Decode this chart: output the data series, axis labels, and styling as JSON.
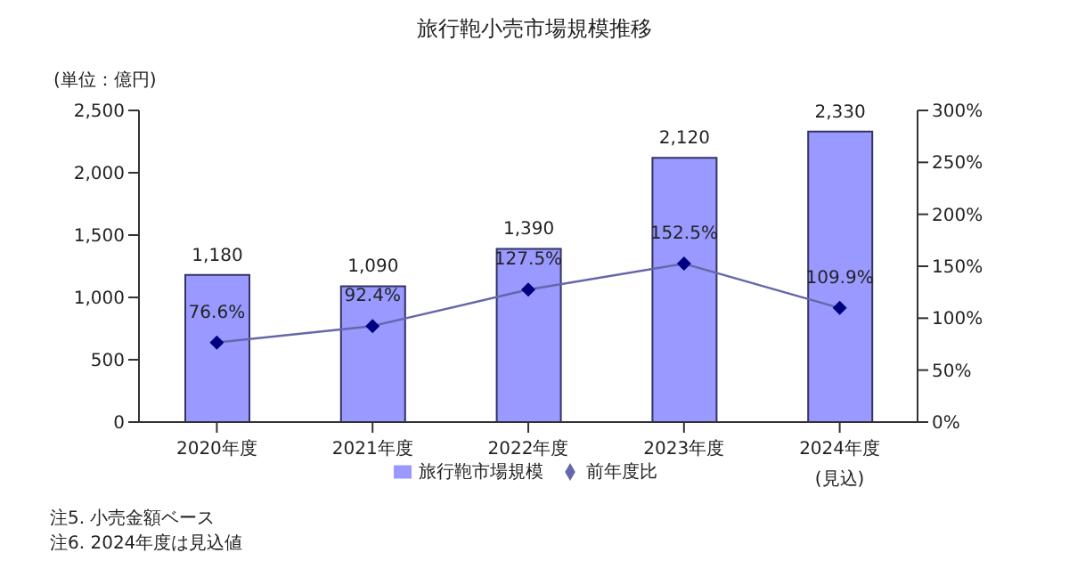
{
  "chart_data": {
    "type": "bar",
    "title": "旅行鞄小売市場規模推移",
    "ylabel": "(単位：億円)",
    "categories": [
      "2020年度",
      "2021年度",
      "2022年度",
      "2023年度",
      "2024年度\n(見込)"
    ],
    "series": [
      {
        "name": "旅行鞄市場規模",
        "color": "#9999ff",
        "values": [
          1180,
          1090,
          1390,
          2120,
          2330
        ],
        "value_labels": [
          "1,180",
          "1,090",
          "1,390",
          "2,120",
          "2,330"
        ]
      },
      {
        "name": "前年度比",
        "type": "line",
        "axis": "y2",
        "color": "#000080",
        "marker": "diamond",
        "values": [
          76.6,
          92.4,
          127.5,
          152.5,
          109.9
        ],
        "value_labels": [
          "76.6%",
          "92.4%",
          "127.5%",
          "152.5%",
          "109.9%"
        ]
      }
    ],
    "ylim": [
      0,
      2500
    ],
    "yticks": [
      {
        "value": 0,
        "label": "0"
      },
      {
        "value": 500,
        "label": "500"
      },
      {
        "value": 1000,
        "label": "1,000"
      },
      {
        "value": 1500,
        "label": "1,500"
      },
      {
        "value": 2000,
        "label": "2,000"
      },
      {
        "value": 2500,
        "label": "2,500"
      }
    ],
    "y2lim": [
      0,
      300
    ],
    "y2ticks": [
      {
        "value": 0,
        "label": "0%"
      },
      {
        "value": 50,
        "label": "50%"
      },
      {
        "value": 100,
        "label": "100%"
      },
      {
        "value": 150,
        "label": "150%"
      },
      {
        "value": 200,
        "label": "200%"
      },
      {
        "value": 250,
        "label": "250%"
      },
      {
        "value": 300,
        "label": "300%"
      }
    ],
    "grid": false,
    "legend": "bottom",
    "annotations": [
      "注5. 小売金額ベース",
      "注6. 2024年度は見込値"
    ]
  }
}
